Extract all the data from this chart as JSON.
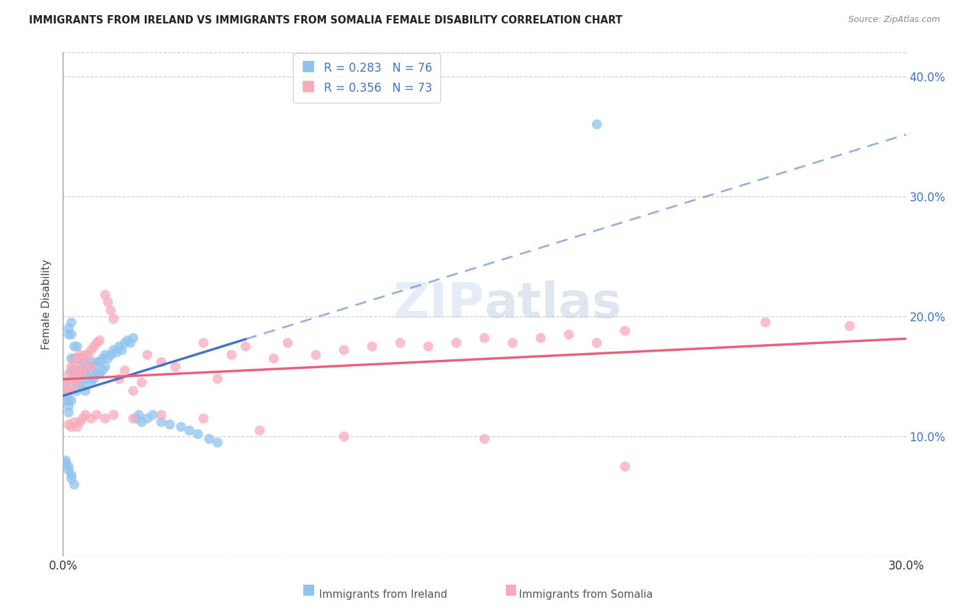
{
  "title": "IMMIGRANTS FROM IRELAND VS IMMIGRANTS FROM SOMALIA FEMALE DISABILITY CORRELATION CHART",
  "source": "Source: ZipAtlas.com",
  "ylabel": "Female Disability",
  "xlim": [
    0.0,
    0.3
  ],
  "ylim": [
    0.0,
    0.42
  ],
  "ytick_values": [
    0.0,
    0.1,
    0.2,
    0.3,
    0.4
  ],
  "xtick_values": [
    0.0,
    0.05,
    0.1,
    0.15,
    0.2,
    0.25,
    0.3
  ],
  "ireland_color": "#90C4EE",
  "somalia_color": "#F9AABB",
  "ireland_line_color": "#4472C4",
  "somalia_line_color": "#E8607A",
  "ireland_R": 0.283,
  "ireland_N": 76,
  "somalia_R": 0.356,
  "somalia_N": 73,
  "watermark_zip": "ZIP",
  "watermark_atlas": "atlas",
  "background_color": "#ffffff",
  "grid_color": "#d0d0d0",
  "ireland_scatter_x": [
    0.001,
    0.001,
    0.001,
    0.002,
    0.002,
    0.002,
    0.002,
    0.002,
    0.003,
    0.003,
    0.003,
    0.003,
    0.003,
    0.004,
    0.004,
    0.004,
    0.004,
    0.005,
    0.005,
    0.005,
    0.005,
    0.005,
    0.006,
    0.006,
    0.006,
    0.007,
    0.007,
    0.007,
    0.008,
    0.008,
    0.008,
    0.009,
    0.009,
    0.01,
    0.01,
    0.01,
    0.011,
    0.011,
    0.012,
    0.012,
    0.013,
    0.013,
    0.014,
    0.014,
    0.015,
    0.015,
    0.016,
    0.017,
    0.018,
    0.019,
    0.02,
    0.021,
    0.022,
    0.023,
    0.024,
    0.025,
    0.026,
    0.027,
    0.028,
    0.03,
    0.032,
    0.035,
    0.038,
    0.042,
    0.045,
    0.048,
    0.052,
    0.055,
    0.001,
    0.001,
    0.002,
    0.002,
    0.003,
    0.003,
    0.004,
    0.19
  ],
  "ireland_scatter_y": [
    0.13,
    0.145,
    0.135,
    0.19,
    0.185,
    0.13,
    0.125,
    0.12,
    0.195,
    0.185,
    0.165,
    0.155,
    0.13,
    0.175,
    0.165,
    0.155,
    0.145,
    0.175,
    0.165,
    0.155,
    0.148,
    0.138,
    0.165,
    0.155,
    0.145,
    0.16,
    0.152,
    0.142,
    0.16,
    0.152,
    0.138,
    0.158,
    0.148,
    0.162,
    0.155,
    0.145,
    0.158,
    0.148,
    0.162,
    0.152,
    0.162,
    0.152,
    0.165,
    0.155,
    0.168,
    0.158,
    0.165,
    0.168,
    0.172,
    0.17,
    0.175,
    0.172,
    0.178,
    0.18,
    0.178,
    0.182,
    0.115,
    0.118,
    0.112,
    0.115,
    0.118,
    0.112,
    0.11,
    0.108,
    0.105,
    0.102,
    0.098,
    0.095,
    0.08,
    0.078,
    0.075,
    0.072,
    0.068,
    0.065,
    0.06,
    0.36
  ],
  "somalia_scatter_x": [
    0.001,
    0.001,
    0.002,
    0.002,
    0.003,
    0.003,
    0.003,
    0.004,
    0.004,
    0.005,
    0.005,
    0.005,
    0.006,
    0.006,
    0.007,
    0.007,
    0.008,
    0.008,
    0.009,
    0.01,
    0.01,
    0.011,
    0.012,
    0.013,
    0.015,
    0.016,
    0.017,
    0.018,
    0.02,
    0.022,
    0.025,
    0.028,
    0.03,
    0.035,
    0.04,
    0.05,
    0.055,
    0.06,
    0.065,
    0.075,
    0.08,
    0.09,
    0.1,
    0.11,
    0.12,
    0.13,
    0.14,
    0.15,
    0.16,
    0.17,
    0.18,
    0.19,
    0.2,
    0.002,
    0.003,
    0.004,
    0.005,
    0.006,
    0.007,
    0.008,
    0.01,
    0.012,
    0.015,
    0.018,
    0.025,
    0.035,
    0.05,
    0.07,
    0.1,
    0.15,
    0.2,
    0.25,
    0.28
  ],
  "somalia_scatter_y": [
    0.145,
    0.138,
    0.152,
    0.138,
    0.158,
    0.148,
    0.138,
    0.162,
    0.148,
    0.165,
    0.155,
    0.145,
    0.168,
    0.155,
    0.165,
    0.152,
    0.168,
    0.158,
    0.168,
    0.172,
    0.158,
    0.175,
    0.178,
    0.18,
    0.218,
    0.212,
    0.205,
    0.198,
    0.148,
    0.155,
    0.138,
    0.145,
    0.168,
    0.162,
    0.158,
    0.178,
    0.148,
    0.168,
    0.175,
    0.165,
    0.178,
    0.168,
    0.172,
    0.175,
    0.178,
    0.175,
    0.178,
    0.182,
    0.178,
    0.182,
    0.185,
    0.178,
    0.188,
    0.11,
    0.108,
    0.112,
    0.108,
    0.112,
    0.115,
    0.118,
    0.115,
    0.118,
    0.115,
    0.118,
    0.115,
    0.118,
    0.115,
    0.105,
    0.1,
    0.098,
    0.075,
    0.195,
    0.192
  ]
}
